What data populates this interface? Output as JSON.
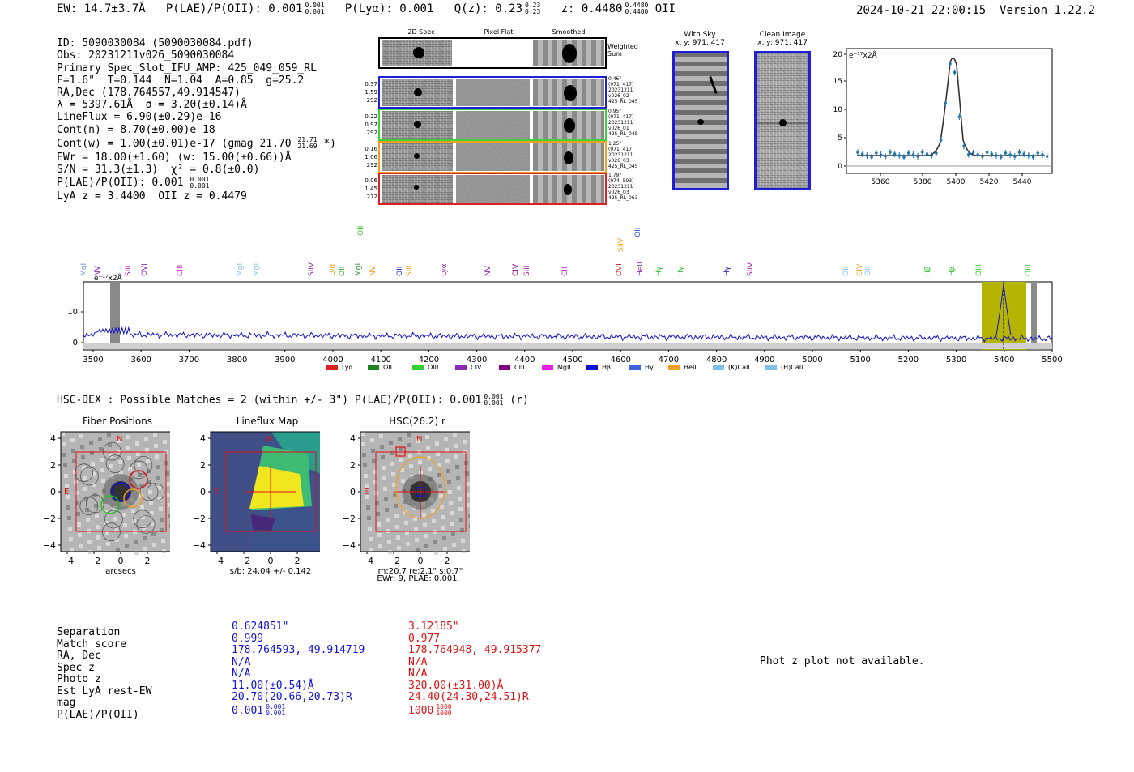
{
  "header": {
    "ew": "EW: 14.7±3.7Å",
    "plae": "P(LAE)/P(OII): 0.001",
    "plae_hi": "0.001",
    "plae_lo": "0.001",
    "plya": "P(Lyα): 0.001",
    "qz": "Q(z): 0.23",
    "qz_hi": "0.23",
    "qz_lo": "0.23",
    "z": "z: 0.4480",
    "z_hi": "0.4480",
    "z_lo": "0.4480",
    "z_line": "OII",
    "timestamp": "2024-10-21 22:00:15",
    "version": "Version 1.22.2"
  },
  "info": {
    "id": "ID: 5090030084 (5090030084.pdf)",
    "obs": "Obs: 20231211v026_5090030084",
    "primary": "Primary Spec_Slot_IFU_AMP: 425_049_059_RL",
    "fparams": "F=1.6\"  T=0.144  N=1.04  A=0.85  g=25.2",
    "radec": "RA,Dec (178.764557,49.914547)",
    "lambda": "λ = 5397.61Å  σ = 3.20(±0.14)Å",
    "lineflux": "LineFlux = 6.90(±0.29)e-16",
    "contn": "Cont(n) = 8.70(±0.00)e-18",
    "contw": "Cont(w) = 1.00(±0.01)e-17 (gmag 21.70",
    "contw_hi": "21.71",
    "contw_lo": "21.69",
    "contw_end": "*)",
    "ewr": "EWr = 18.00(±1.60) (w: 15.00(±0.66))Å",
    "sn": "S/N = 31.3(±1.3)  χ² = 0.8(±0.0)",
    "plae": "P(LAE)/P(OII): 0.001",
    "plae_hi": "0.001",
    "plae_lo": "0.001",
    "lyaz": "LyA z = 3.4400  OII z = 0.4479"
  },
  "cutouts": {
    "col_titles": [
      "2D Spec",
      "Pixel Flat",
      "Smoothed"
    ],
    "weighted_label": "Weighted Sum",
    "rows": [
      {
        "left": [
          "0.37",
          "1.59",
          "292"
        ],
        "right": [
          "0.46\"",
          "(971, 417)",
          "20231211",
          "v026_02",
          "425_RL_045"
        ],
        "color": "#1f1fd8"
      },
      {
        "left": [
          "0.22",
          "0.97",
          "292"
        ],
        "right": [
          "0.95\"",
          "(971, 417)",
          "20231211",
          "v026_01",
          "425_RL_045"
        ],
        "color": "#3ad43a"
      },
      {
        "left": [
          "0.16",
          "1.06",
          "292"
        ],
        "right": [
          "1.25\"",
          "(971, 417)",
          "20231211",
          "v026_03",
          "425_RL_045"
        ],
        "color": "#f0a020"
      },
      {
        "left": [
          "0.06",
          "1.45",
          "272"
        ],
        "right": [
          "1.79\"",
          "(974, 593)",
          "20231211",
          "v026_03",
          "425_RL_063"
        ],
        "color": "#e02020"
      }
    ]
  },
  "sky": {
    "with_sky_title": "With Sky",
    "with_sky_xy": "x, y: 971, 417",
    "clean_title": "Clean Image",
    "clean_xy": "x, y: 971, 417"
  },
  "linefit": {
    "unit": "e⁻¹⁷x2Å",
    "x_ticks": [
      "5360",
      "5380",
      "5400",
      "5420",
      "5440"
    ],
    "y_ticks": [
      "20",
      "15",
      "10",
      "5",
      "0"
    ]
  },
  "spectrum": {
    "unit": "e⁻¹⁷x2Å",
    "x_ticks": [
      "3500",
      "3600",
      "3700",
      "3800",
      "3900",
      "4000",
      "4100",
      "4200",
      "4300",
      "4400",
      "4500",
      "4600",
      "4700",
      "4800",
      "4900",
      "5000",
      "5100",
      "5200",
      "5300",
      "5400",
      "5500"
    ],
    "y_ticks": [
      "10",
      "0"
    ],
    "line_labels": [
      {
        "t": "MgII",
        "c": "#6d8fd8"
      },
      {
        "t": "NV",
        "c": "#8a2ab0"
      },
      {
        "t": "SiII",
        "c": "#a020a0"
      },
      {
        "t": "OVI",
        "c": "#8a2ab0"
      },
      {
        "t": "CIII",
        "c": "#d020d0"
      },
      {
        "t": "MgII",
        "c": "#7fbfe8"
      },
      {
        "t": "MgII",
        "c": "#7fbfe8"
      },
      {
        "t": "SiIV",
        "c": "#8a2ab0"
      },
      {
        "t": "Lyα",
        "c": "#f0a020"
      },
      {
        "t": "OII",
        "c": "#20a020"
      },
      {
        "t": "MgII",
        "c": "#208020"
      },
      {
        "t": "OII",
        "c": "#30c030"
      },
      {
        "t": "NV",
        "c": "#f0a020"
      },
      {
        "t": "OII",
        "c": "#2020c0"
      },
      {
        "t": "SiII",
        "c": "#f0a020"
      },
      {
        "t": "Lyα",
        "c": "#a020a0"
      },
      {
        "t": "NV",
        "c": "#8a2ab0"
      },
      {
        "t": "CIV",
        "c": "#800080"
      },
      {
        "t": "SiII",
        "c": "#a020a0"
      },
      {
        "t": "CII",
        "c": "#d020d0"
      },
      {
        "t": "OVI",
        "c": "#d02020"
      },
      {
        "t": "SiIV",
        "c": "#f0a020"
      },
      {
        "t": "OII",
        "c": "#2050e0"
      },
      {
        "t": "HeII",
        "c": "#8a2ab0"
      },
      {
        "t": "Hγ",
        "c": "#30c030"
      },
      {
        "t": "Hγ",
        "c": "#30c030"
      },
      {
        "t": "Hγ",
        "c": "#2020c0"
      },
      {
        "t": "SiIV",
        "c": "#a020a0"
      },
      {
        "t": "OII",
        "c": "#7fbfe8"
      },
      {
        "t": "CIV",
        "c": "#f0a020"
      },
      {
        "t": "OII",
        "c": "#7fbfe8"
      },
      {
        "t": "Hβ",
        "c": "#30c030"
      },
      {
        "t": "Hβ",
        "c": "#30c030"
      },
      {
        "t": "OIII",
        "c": "#30c030"
      },
      {
        "t": "OIII",
        "c": "#30c030"
      }
    ],
    "legend": [
      {
        "t": "Lyα",
        "c": "#e02020"
      },
      {
        "t": "OII",
        "c": "#208020"
      },
      {
        "t": "OIII",
        "c": "#30d030"
      },
      {
        "t": "CIV",
        "c": "#8a2ab0"
      },
      {
        "t": "CIII",
        "c": "#800080"
      },
      {
        "t": "MgII",
        "c": "#f020f0"
      },
      {
        "t": "Hβ",
        "c": "#1010e0"
      },
      {
        "t": "Hγ",
        "c": "#4060e0"
      },
      {
        "t": "HeII",
        "c": "#f0a020"
      },
      {
        "t": "(K)CaII",
        "c": "#80c0e8"
      },
      {
        "t": "(H)CaII",
        "c": "#80c0e8"
      }
    ]
  },
  "hsc": {
    "title": "HSC-DEX : Possible Matches = 2 (within +/- 3\")  P(LAE)/P(OII): 0.001",
    "title_hi": "0.001",
    "title_lo": "0.001",
    "title_end": "(r)",
    "panels": [
      {
        "title": "Fiber Positions",
        "xlabel": "arcsecs",
        "extra": ""
      },
      {
        "title": "Lineflux Map",
        "xlabel": "s/b: 24.04 +/- 0.142",
        "extra": ""
      },
      {
        "title": "HSC(26.2) r",
        "xlabel": "m:20.7  re:2.1\"  s:0.7\"",
        "extra": "EWr: 9, PLAE: 0.001"
      }
    ],
    "axis_ticks": [
      "4",
      "2",
      "0",
      "−2",
      "−4"
    ],
    "x_ticks": [
      "−4",
      "−2",
      "0",
      "2",
      "4"
    ],
    "n_label": "N",
    "e_label": "E"
  },
  "matches": {
    "labels": [
      "Separation",
      "Match score",
      "RA, Dec",
      "Spec z",
      "Photo z",
      "Est LyA rest-EW",
      "mag",
      "P(LAE)/P(OII)"
    ],
    "blue": [
      "0.624851\"",
      "0.999",
      "178.764593, 49.914719",
      "N/A",
      "N/A",
      "11.00(±0.54)Å",
      "20.70(20.66,20.73)R",
      "0.001"
    ],
    "blue_plae_hi": "0.001",
    "blue_plae_lo": "0.001",
    "red": [
      "3.12185\"",
      "0.977",
      "178.764948, 49.915377",
      "N/A",
      "N/A",
      "320.00(±31.00)Å",
      "24.40(24.30,24.51)R",
      "1000"
    ],
    "red_plae_hi": "1000",
    "red_plae_lo": "1000",
    "blue_color": "#1010e0",
    "red_color": "#e01010"
  },
  "photz": {
    "message": "Phot z plot not available."
  }
}
